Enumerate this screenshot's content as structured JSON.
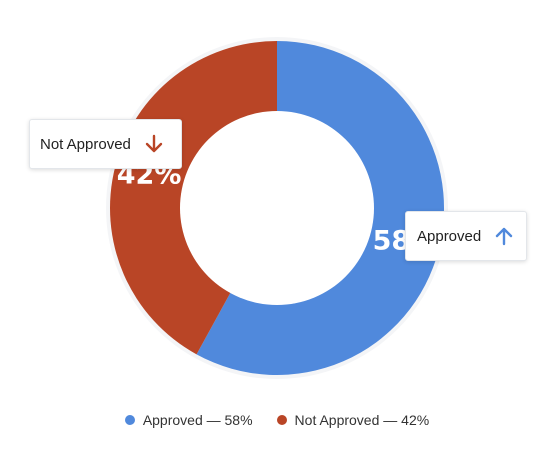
{
  "colors": {
    "approved": "#5089dc",
    "not_approved": "#b94526"
  },
  "chart_data": {
    "type": "pie",
    "variant": "donut",
    "categories": [
      "Approved",
      "Not Approved"
    ],
    "values": [
      58,
      42
    ],
    "unit": "%",
    "data_labels": [
      "58%",
      "42%"
    ],
    "legend": {
      "position": "bottom",
      "entries": [
        "Approved — 58%",
        "Not Approved — 42%"
      ]
    },
    "callouts": [
      {
        "label": "Approved",
        "icon": "arrow-up-icon"
      },
      {
        "label": "Not Approved",
        "icon": "arrow-down-icon"
      }
    ]
  }
}
